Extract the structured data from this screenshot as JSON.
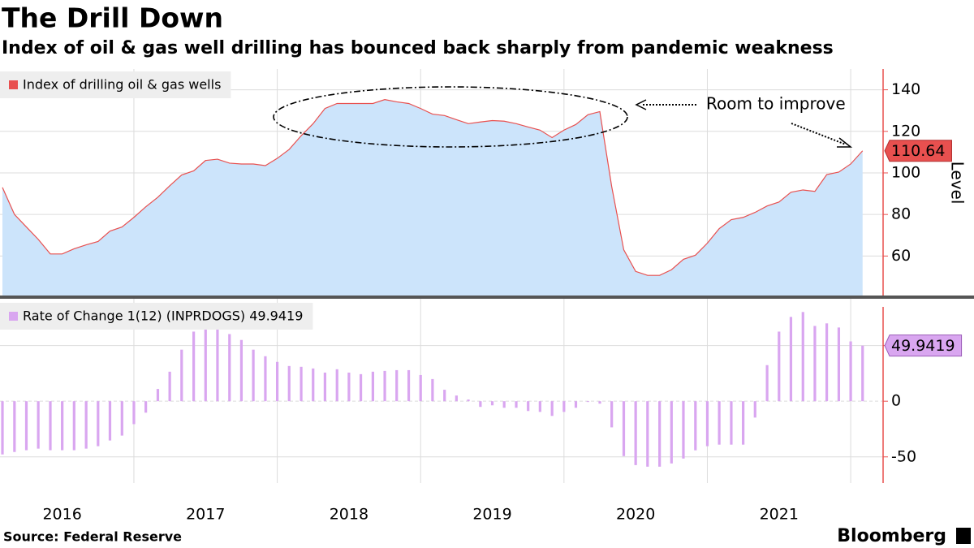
{
  "title": "The Drill Down",
  "subtitle": "Index of oil & gas well drilling has bounced back sharply from pandemic weakness",
  "source": "Source: Federal Reserve",
  "brand": "Bloomberg",
  "chart_data": [
    {
      "type": "area",
      "y_label": "Level",
      "annotation": "Room to improve",
      "grid": true,
      "axis_color": "#e8504f",
      "x": [
        2016.083,
        2016.167,
        2016.25,
        2016.333,
        2016.417,
        2016.5,
        2016.583,
        2016.667,
        2016.75,
        2016.833,
        2016.917,
        2017,
        2017.083,
        2017.167,
        2017.25,
        2017.333,
        2017.417,
        2017.5,
        2017.583,
        2017.667,
        2017.75,
        2017.833,
        2017.917,
        2018,
        2018.083,
        2018.167,
        2018.25,
        2018.333,
        2018.417,
        2018.5,
        2018.583,
        2018.667,
        2018.75,
        2018.833,
        2018.917,
        2019,
        2019.083,
        2019.167,
        2019.25,
        2019.333,
        2019.417,
        2019.5,
        2019.583,
        2019.667,
        2019.75,
        2019.833,
        2019.917,
        2020,
        2020.083,
        2020.167,
        2020.25,
        2020.333,
        2020.417,
        2020.5,
        2020.583,
        2020.667,
        2020.75,
        2020.833,
        2020.917,
        2021,
        2021.083,
        2021.167,
        2021.25,
        2021.333,
        2021.417,
        2021.5,
        2021.583,
        2021.667,
        2021.75,
        2021.833,
        2021.917,
        2022,
        2022.083
      ],
      "series": [
        {
          "name": "Index of drilling oil & gas wells",
          "color": "#e8504f",
          "fill": "#cce4fb",
          "values": [
            93,
            80,
            74,
            68,
            61,
            61,
            63.5,
            65.4,
            67,
            72,
            74,
            78.6,
            83.7,
            88.3,
            93.8,
            99,
            101,
            106,
            106.6,
            104.7,
            104.3,
            104.3,
            103.5,
            107,
            111.3,
            117.9,
            123.7,
            131,
            133.4,
            133.4,
            133.4,
            133.4,
            135.3,
            134.2,
            133.4,
            131,
            128.3,
            127.6,
            125.6,
            123.7,
            124.5,
            125.2,
            124.9,
            123.7,
            122.1,
            120.6,
            117,
            120.6,
            123.3,
            128,
            129.5,
            93.4,
            63,
            52.6,
            50.7,
            50.7,
            53.4,
            58.4,
            60.4,
            66.2,
            73.2,
            77.5,
            78.6,
            81,
            84.1,
            86,
            90.7,
            91.8,
            91.1,
            99.2,
            100.4,
            104.3,
            110.64
          ]
        }
      ],
      "xlim": [
        2016.066,
        2022.226
      ],
      "xgrid": [
        2017,
        2018,
        2019,
        2020,
        2021,
        2022
      ],
      "ylim": [
        41,
        150
      ],
      "yticks": [
        60,
        80,
        100,
        120,
        140
      ]
    },
    {
      "type": "bar",
      "grid": true,
      "axis_color": "#e8504f",
      "x": [
        2016.083,
        2016.167,
        2016.25,
        2016.333,
        2016.417,
        2016.5,
        2016.583,
        2016.667,
        2016.75,
        2016.833,
        2016.917,
        2017,
        2017.083,
        2017.167,
        2017.25,
        2017.333,
        2017.417,
        2017.5,
        2017.583,
        2017.667,
        2017.75,
        2017.833,
        2017.917,
        2018,
        2018.083,
        2018.167,
        2018.25,
        2018.333,
        2018.417,
        2018.5,
        2018.583,
        2018.667,
        2018.75,
        2018.833,
        2018.917,
        2019,
        2019.083,
        2019.167,
        2019.25,
        2019.333,
        2019.417,
        2019.5,
        2019.583,
        2019.667,
        2019.75,
        2019.833,
        2019.917,
        2020,
        2020.083,
        2020.167,
        2020.25,
        2020.333,
        2020.417,
        2020.5,
        2020.583,
        2020.667,
        2020.75,
        2020.833,
        2020.917,
        2021,
        2021.083,
        2021.167,
        2021.25,
        2021.333,
        2021.417,
        2021.5,
        2021.583,
        2021.667,
        2021.75,
        2021.833,
        2021.917,
        2022,
        2022.083
      ],
      "series": [
        {
          "name": "Rate of Change 1(12) (INPRDOGS) 49.9419",
          "color": "#d9a6f0",
          "values": [
            -47.8,
            -45.6,
            -44,
            -42.6,
            -44,
            -44,
            -44,
            -42.6,
            -40.4,
            -35.3,
            -30.9,
            -20.6,
            -10.3,
            11,
            26.5,
            46.3,
            62.5,
            69.9,
            67.6,
            60.3,
            55,
            46.3,
            40.4,
            35.3,
            31.6,
            30.9,
            29.4,
            25.7,
            28.7,
            25.7,
            24.3,
            26.5,
            27.2,
            27.9,
            27.9,
            23.5,
            19.9,
            10.3,
            5.1,
            1.5,
            -5.1,
            -3.7,
            -5.9,
            -5.9,
            -8.8,
            -9.6,
            -13.2,
            -9.6,
            -5.9,
            -0.7,
            -2.2,
            -23.5,
            -49.3,
            -57.4,
            -58.8,
            -58.8,
            -55.9,
            -51.5,
            -44.1,
            -40.4,
            -39,
            -39,
            -39,
            -14.7,
            32.4,
            62.5,
            75.7,
            80.1,
            67.6,
            69.9,
            66.2,
            53.7,
            49.9419
          ]
        }
      ],
      "xlim": [
        2016.066,
        2022.226
      ],
      "xgrid": [
        2017,
        2018,
        2019,
        2020,
        2021,
        2022
      ],
      "xticks": [
        {
          "value": 2016.5,
          "label": "2016"
        },
        {
          "value": 2017.5,
          "label": "2017"
        },
        {
          "value": 2018.5,
          "label": "2018"
        },
        {
          "value": 2019.5,
          "label": "2019"
        },
        {
          "value": 2020.5,
          "label": "2020"
        },
        {
          "value": 2021.5,
          "label": "2021"
        }
      ],
      "ylim": [
        -73.5,
        92
      ],
      "yticks": [
        -50,
        0,
        50
      ]
    }
  ]
}
